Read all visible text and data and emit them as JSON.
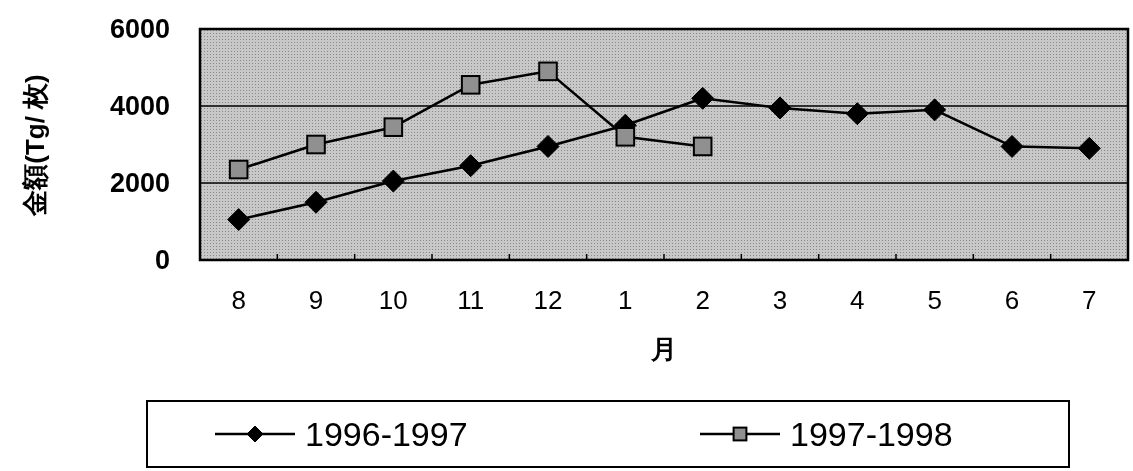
{
  "chart_data": {
    "type": "line",
    "xlabel": "月",
    "ylabel": "金額(Tg/ 枚)",
    "categories": [
      "8",
      "9",
      "10",
      "11",
      "12",
      "1",
      "2",
      "3",
      "4",
      "5",
      "6",
      "7"
    ],
    "series": [
      {
        "name": "1996-1997",
        "color": "#000000",
        "marker": "diamond",
        "values": [
          1050,
          1500,
          2050,
          2450,
          2950,
          3500,
          4200,
          3950,
          3800,
          3900,
          2950,
          2900
        ]
      },
      {
        "name": "1997-1998",
        "color": "#909090",
        "marker": "square",
        "values": [
          2350,
          3000,
          3450,
          4550,
          4900,
          3200,
          2950,
          null,
          null,
          null,
          null,
          null
        ]
      }
    ],
    "ylim": [
      0,
      6000
    ],
    "yticks": [
      0,
      2000,
      4000,
      6000
    ],
    "grid": "y",
    "legend": "bottom",
    "line_style": "solid"
  }
}
